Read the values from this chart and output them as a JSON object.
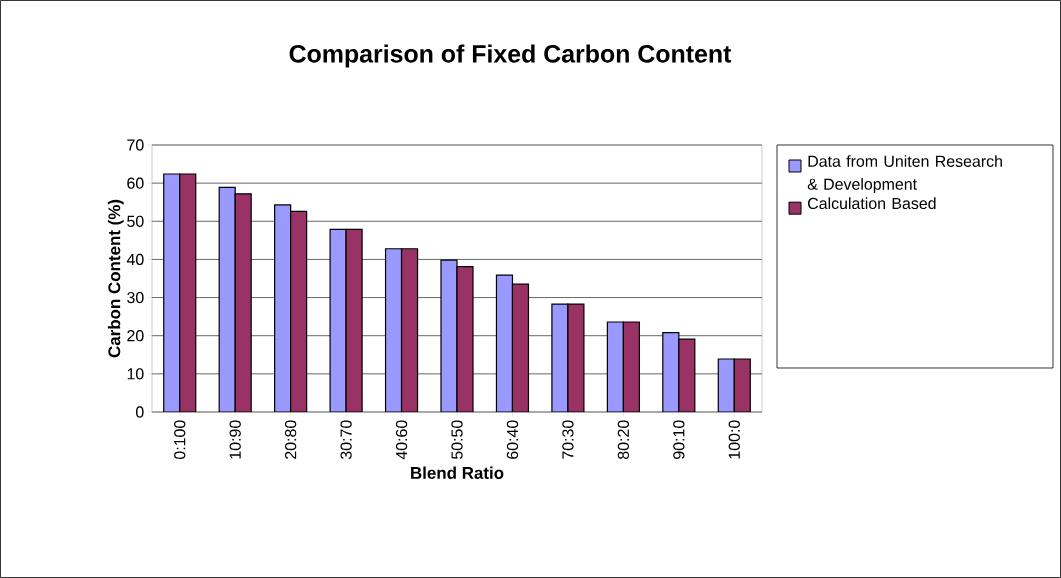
{
  "chart_data": {
    "type": "bar",
    "title": "Comparison of Fixed Carbon Content",
    "xlabel": "Blend Ratio",
    "ylabel": "Carbon Content (%)",
    "categories": [
      "0:100",
      "10:90",
      "20:80",
      "30:70",
      "40:60",
      "50:50",
      "60:40",
      "70:30",
      "80:20",
      "90:10",
      "100:0"
    ],
    "series": [
      {
        "name": "Data from Uniten Research & Development",
        "color": "#9999ff",
        "values": [
          62.4,
          58.9,
          54.3,
          47.9,
          42.8,
          39.8,
          35.9,
          28.3,
          23.6,
          20.8,
          13.9
        ]
      },
      {
        "name": "Calculation Based",
        "color": "#993366",
        "values": [
          62.4,
          57.2,
          52.6,
          47.9,
          42.8,
          38.1,
          33.5,
          28.3,
          23.6,
          19.1,
          13.9
        ]
      }
    ],
    "ylim": [
      0,
      70
    ],
    "yticks": [
      0,
      10,
      20,
      30,
      40,
      50,
      60,
      70
    ],
    "grid": "y",
    "legend": "right"
  }
}
